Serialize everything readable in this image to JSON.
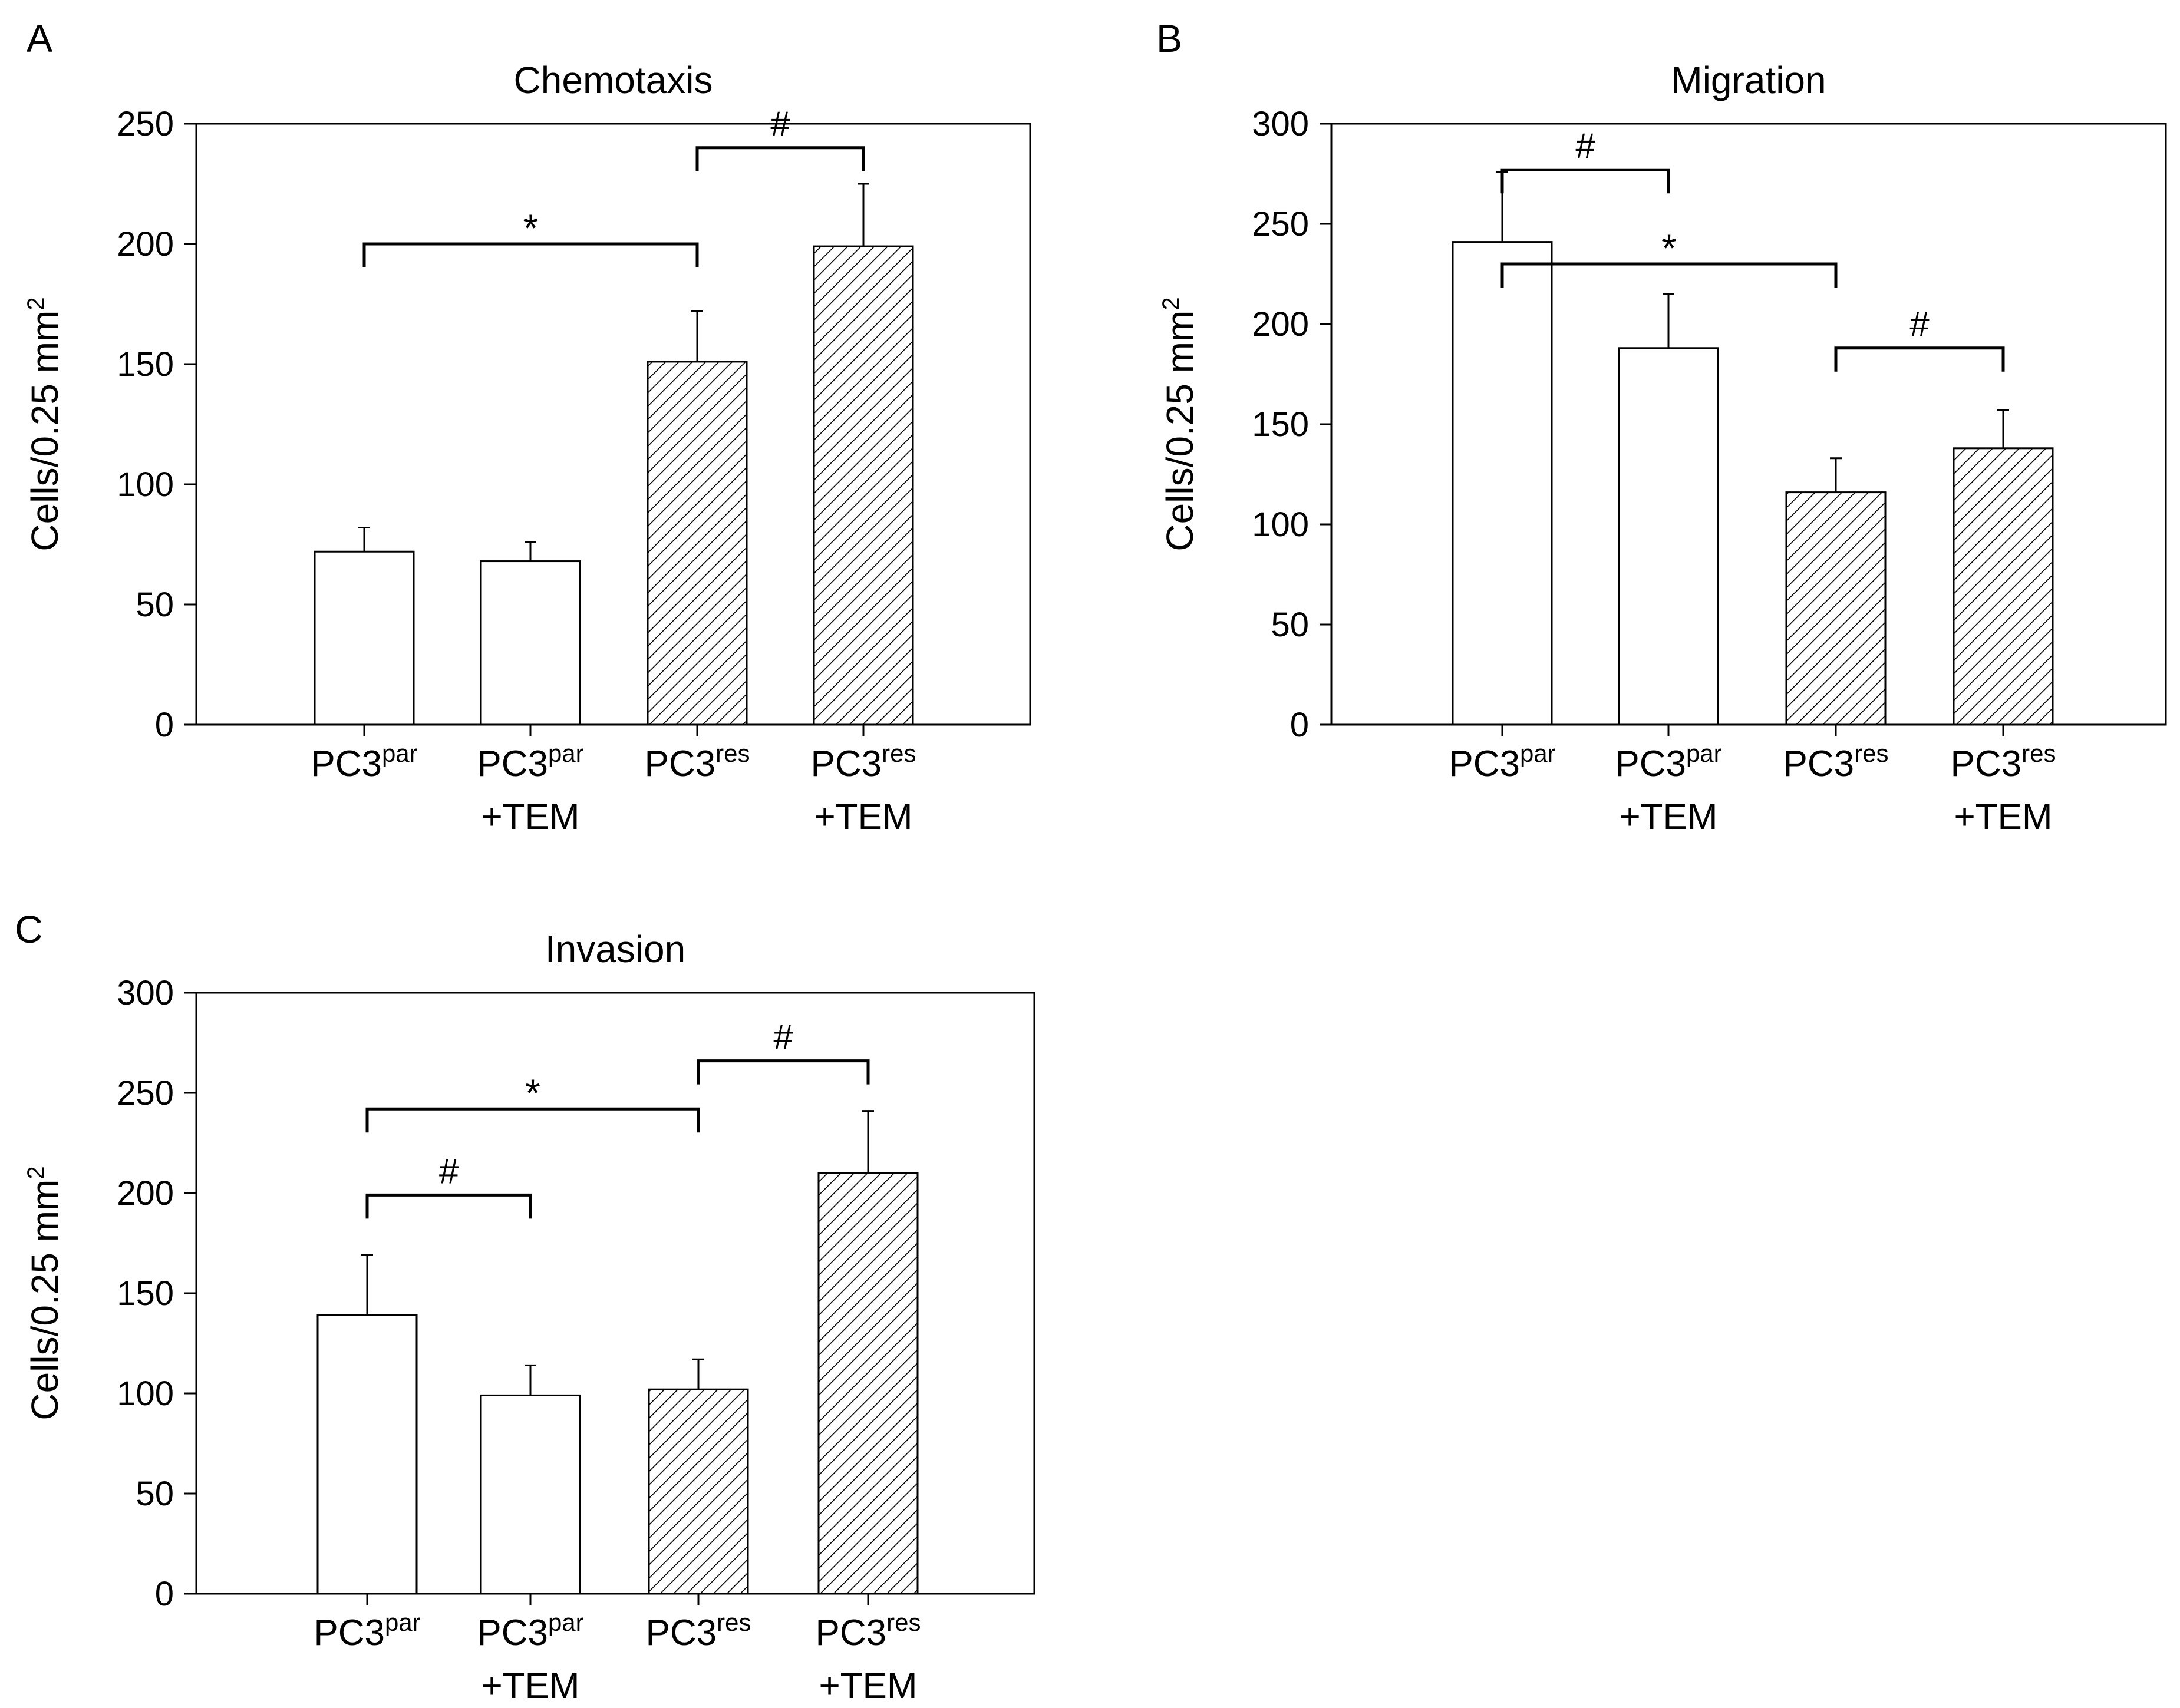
{
  "panel_letters": [
    "A",
    "B",
    "C"
  ],
  "hatch_color": "#000000",
  "open_fill": "#ffffff",
  "chart_data": [
    {
      "type": "bar",
      "panel": "A",
      "title": "Chemotaxis",
      "ylabel": "Cells/0.25 mm",
      "ylabel_sup": "2",
      "ylim": [
        0,
        250
      ],
      "yticks": [
        0,
        50,
        100,
        150,
        200,
        250
      ],
      "categories": [
        {
          "base": "PC3",
          "sup": "par",
          "second": ""
        },
        {
          "base": "PC3",
          "sup": "par",
          "second": "+TEM"
        },
        {
          "base": "PC3",
          "sup": "res",
          "second": ""
        },
        {
          "base": "PC3",
          "sup": "res",
          "second": "+TEM"
        }
      ],
      "values": [
        72,
        68,
        151,
        199
      ],
      "errors": [
        10,
        8,
        21,
        26
      ],
      "fill": [
        "open",
        "open",
        "hatched",
        "hatched"
      ],
      "brackets": [
        {
          "from": 2,
          "to": 3,
          "level": 240,
          "symbol": "#"
        },
        {
          "from": 0,
          "to": 2,
          "level": 200,
          "symbol": "*"
        }
      ]
    },
    {
      "type": "bar",
      "panel": "B",
      "title": "Migration",
      "ylabel": "Cells/0.25 mm",
      "ylabel_sup": "2",
      "ylim": [
        0,
        300
      ],
      "yticks": [
        0,
        50,
        100,
        150,
        200,
        250,
        300
      ],
      "categories": [
        {
          "base": "PC3",
          "sup": "par",
          "second": ""
        },
        {
          "base": "PC3",
          "sup": "par",
          "second": "+TEM"
        },
        {
          "base": "PC3",
          "sup": "res",
          "second": ""
        },
        {
          "base": "PC3",
          "sup": "res",
          "second": "+TEM"
        }
      ],
      "values": [
        241,
        188,
        116,
        138
      ],
      "errors": [
        35,
        27,
        17,
        19
      ],
      "fill": [
        "open",
        "open",
        "hatched",
        "hatched"
      ],
      "brackets": [
        {
          "from": 0,
          "to": 1,
          "level": 277,
          "symbol": "#"
        },
        {
          "from": 0,
          "to": 2,
          "level": 230,
          "symbol": "*"
        },
        {
          "from": 2,
          "to": 3,
          "level": 188,
          "symbol": "#"
        }
      ]
    },
    {
      "type": "bar",
      "panel": "C",
      "title": "Invasion",
      "ylabel": "Cells/0.25 mm",
      "ylabel_sup": "2",
      "ylim": [
        0,
        300
      ],
      "yticks": [
        0,
        50,
        100,
        150,
        200,
        250,
        300
      ],
      "categories": [
        {
          "base": "PC3",
          "sup": "par",
          "second": ""
        },
        {
          "base": "PC3",
          "sup": "par",
          "second": "+TEM"
        },
        {
          "base": "PC3",
          "sup": "res",
          "second": ""
        },
        {
          "base": "PC3",
          "sup": "res",
          "second": "+TEM"
        }
      ],
      "values": [
        139,
        99,
        102,
        210
      ],
      "errors": [
        30,
        15,
        15,
        31
      ],
      "fill": [
        "open",
        "open",
        "hatched",
        "hatched"
      ],
      "brackets": [
        {
          "from": 2,
          "to": 3,
          "level": 266,
          "symbol": "#"
        },
        {
          "from": 0,
          "to": 2,
          "level": 242,
          "symbol": "*"
        },
        {
          "from": 0,
          "to": 1,
          "level": 199,
          "symbol": "#"
        }
      ]
    }
  ]
}
